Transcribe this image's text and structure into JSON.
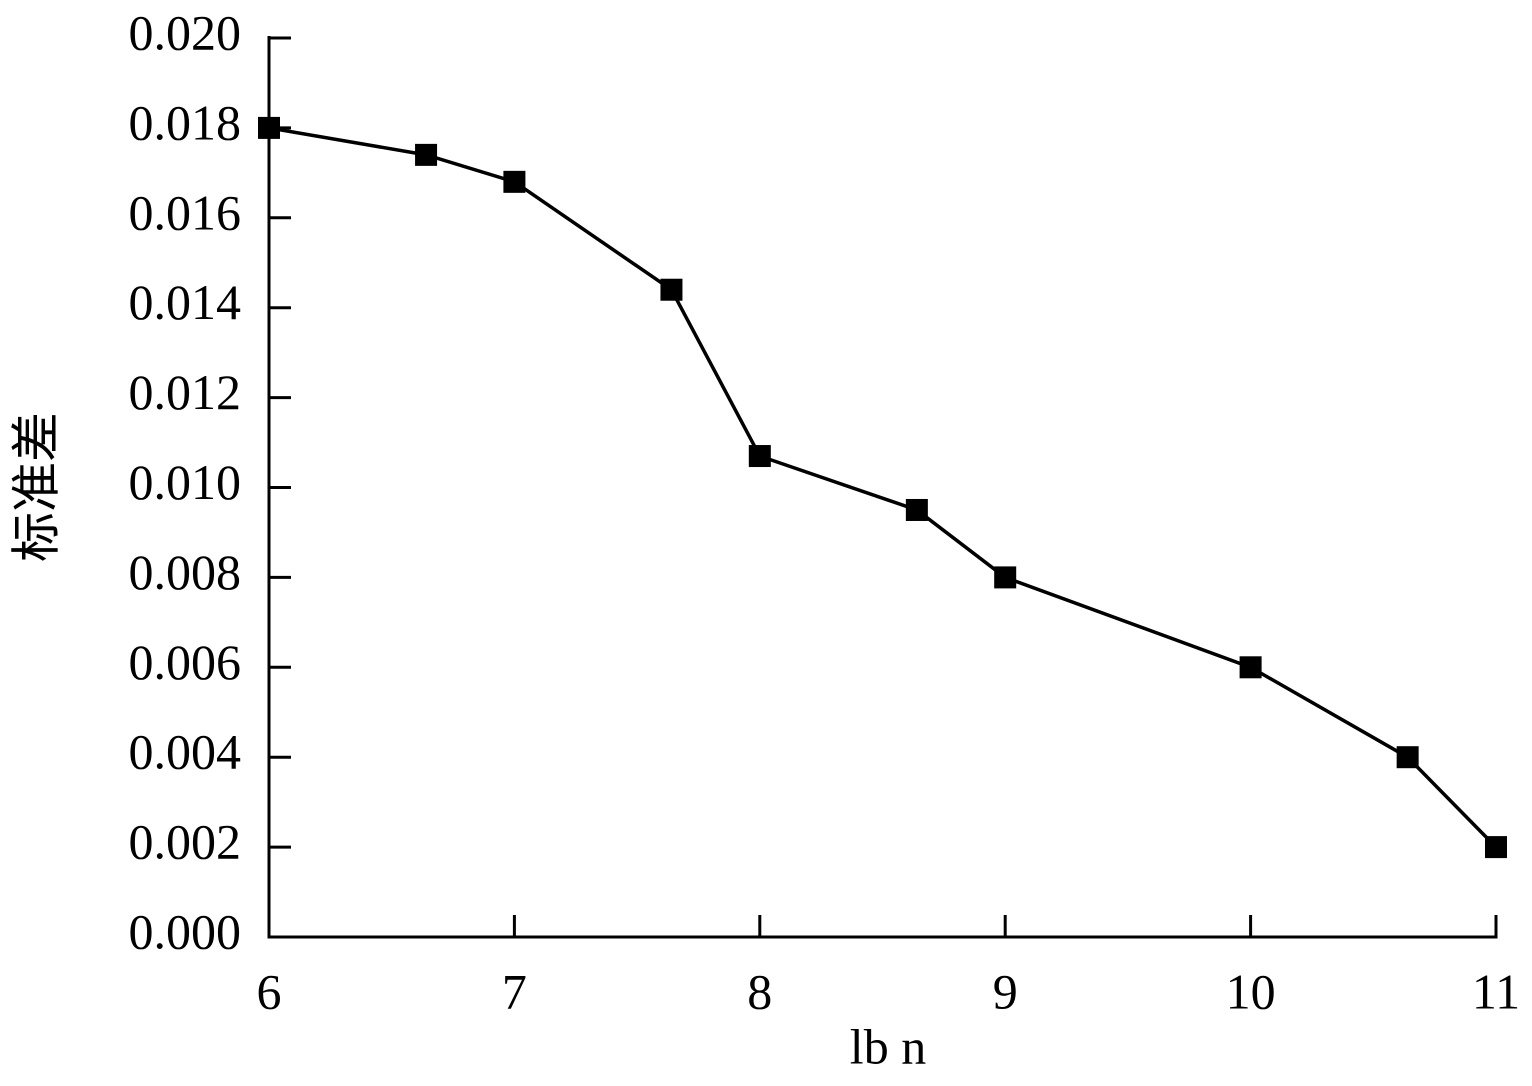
{
  "chart_data": {
    "type": "line",
    "xlabel": "lb n",
    "ylabel": "标准差",
    "x": [
      6,
      6.64,
      7,
      7.64,
      8,
      8.64,
      9,
      10,
      10.64,
      11
    ],
    "series": [
      {
        "color": "#000000",
        "values": [
          0.018,
          0.0174,
          0.0168,
          0.0144,
          0.0107,
          0.0095,
          0.008,
          0.006,
          0.004,
          0.002
        ]
      }
    ],
    "xlim": [
      6,
      11
    ],
    "xticks": [
      6,
      7,
      8,
      9,
      10,
      11
    ],
    "ylim": [
      0,
      0.02
    ],
    "yticks": [
      {
        "value": 0,
        "label": "0.000"
      },
      {
        "value": 0.002,
        "label": "0.002"
      },
      {
        "value": 0.004,
        "label": "0.004"
      },
      {
        "value": 0.006,
        "label": "0.006"
      },
      {
        "value": 0.008,
        "label": "0.008"
      },
      {
        "value": 0.01,
        "label": "0.010"
      },
      {
        "value": 0.012,
        "label": "0.012"
      },
      {
        "value": 0.014,
        "label": "0.014"
      },
      {
        "value": 0.016,
        "label": "0.016"
      },
      {
        "value": 0.018,
        "label": "0.018"
      },
      {
        "value": 0.02,
        "label": "0.020"
      }
    ],
    "marker": "square",
    "grid": false
  }
}
